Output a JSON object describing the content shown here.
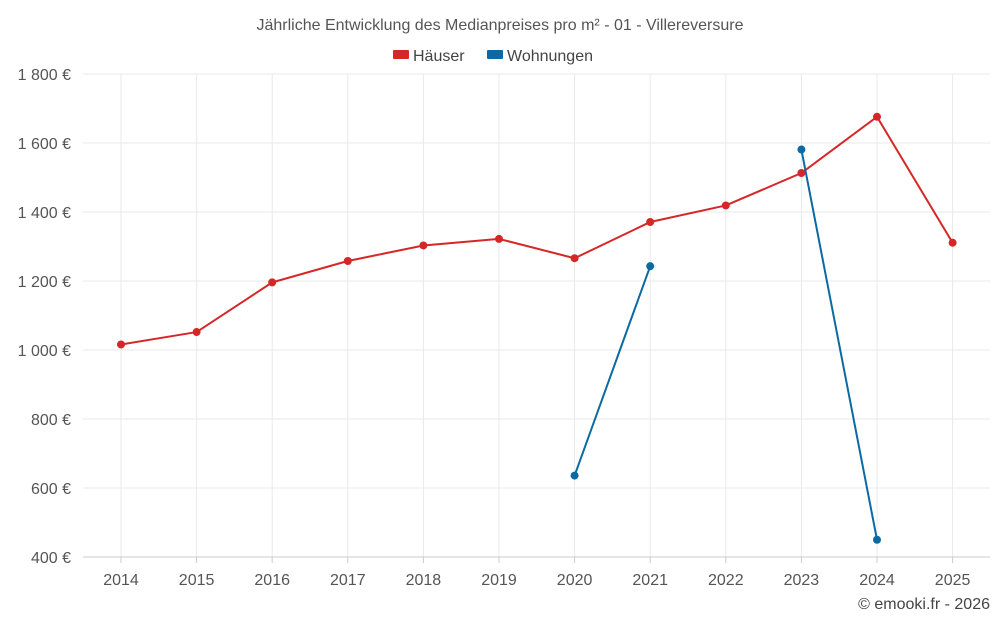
{
  "chart_data": {
    "type": "line",
    "title": "Jährliche Entwicklung des Medianpreises pro m² - 01 - Villereversure",
    "categories": [
      "2014",
      "2015",
      "2016",
      "2017",
      "2018",
      "2019",
      "2020",
      "2021",
      "2022",
      "2023",
      "2024",
      "2025"
    ],
    "series": [
      {
        "name": "Häuser",
        "color": "#d62728",
        "values": [
          1016,
          1052,
          1196,
          1258,
          1303,
          1322,
          1266,
          1371,
          1419,
          1513,
          1676,
          1311
        ]
      },
      {
        "name": "Wohnungen",
        "color": "#0a6aa1",
        "values": [
          null,
          null,
          null,
          null,
          null,
          null,
          636,
          1243,
          null,
          1581,
          450,
          null
        ]
      }
    ],
    "ylim": [
      400,
      1800
    ],
    "yticks": [
      {
        "value": 400,
        "label": "400 €"
      },
      {
        "value": 600,
        "label": "600 €"
      },
      {
        "value": 800,
        "label": "800 €"
      },
      {
        "value": 1000,
        "label": "1 000 €"
      },
      {
        "value": 1200,
        "label": "1 200 €"
      },
      {
        "value": 1400,
        "label": "1 400 €"
      },
      {
        "value": 1600,
        "label": "1 600 €"
      },
      {
        "value": 1800,
        "label": "1 800 €"
      }
    ],
    "grid": true,
    "legend_position": "top-center",
    "credit": "© emooki.fr - 2026"
  }
}
